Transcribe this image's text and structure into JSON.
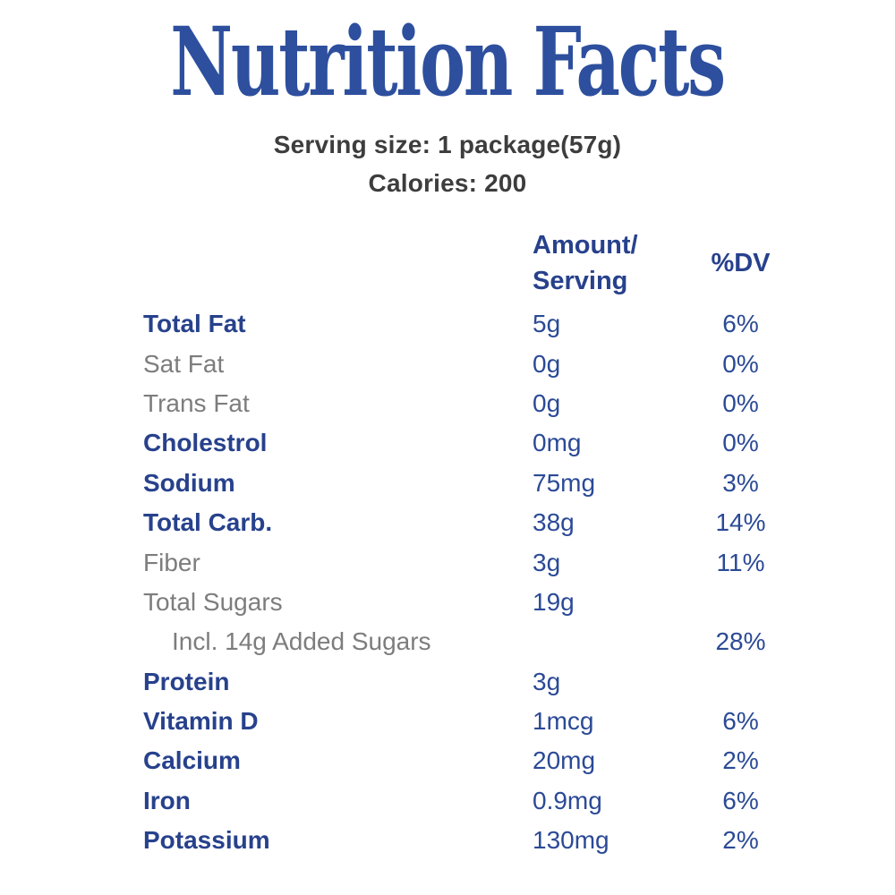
{
  "header": {
    "title": "Nutrition Facts",
    "serving_size": "Serving size: 1 package(57g)",
    "calories": "Calories: 200"
  },
  "colors": {
    "title_blue": "#2d4f9e",
    "label_blue": "#27418c",
    "value_blue": "#2b4a96",
    "muted_gray": "#7d7d7d",
    "dark_gray": "#3d3d3d",
    "background": "#ffffff"
  },
  "table": {
    "column_headers": {
      "amount_line1": "Amount/",
      "amount_line2": "Serving",
      "dv": "%DV"
    },
    "rows": [
      {
        "label": "Total Fat",
        "amount": "5g",
        "dv": "6%",
        "emphasis": "primary",
        "indent": false
      },
      {
        "label": "Sat Fat",
        "amount": "0g",
        "dv": "0%",
        "emphasis": "secondary",
        "indent": false
      },
      {
        "label": "Trans Fat",
        "amount": "0g",
        "dv": "0%",
        "emphasis": "secondary",
        "indent": false
      },
      {
        "label": "Cholestrol",
        "amount": "0mg",
        "dv": "0%",
        "emphasis": "primary",
        "indent": false
      },
      {
        "label": "Sodium",
        "amount": "75mg",
        "dv": "3%",
        "emphasis": "primary",
        "indent": false
      },
      {
        "label": "Total Carb.",
        "amount": "38g",
        "dv": "14%",
        "emphasis": "primary",
        "indent": false
      },
      {
        "label": "Fiber",
        "amount": "3g",
        "dv": "11%",
        "emphasis": "secondary",
        "indent": false
      },
      {
        "label": "Total Sugars",
        "amount": "19g",
        "dv": "",
        "emphasis": "secondary",
        "indent": false
      },
      {
        "label": "Incl. 14g Added Sugars",
        "amount": "",
        "dv": "28%",
        "emphasis": "secondary",
        "indent": true
      },
      {
        "label": "Protein",
        "amount": "3g",
        "dv": "",
        "emphasis": "primary",
        "indent": false
      },
      {
        "label": "Vitamin D",
        "amount": "1mcg",
        "dv": "6%",
        "emphasis": "primary",
        "indent": false
      },
      {
        "label": "Calcium",
        "amount": "20mg",
        "dv": "2%",
        "emphasis": "primary",
        "indent": false
      },
      {
        "label": "Iron",
        "amount": "0.9mg",
        "dv": "6%",
        "emphasis": "primary",
        "indent": false
      },
      {
        "label": "Potassium",
        "amount": "130mg",
        "dv": "2%",
        "emphasis": "primary",
        "indent": false
      }
    ]
  }
}
